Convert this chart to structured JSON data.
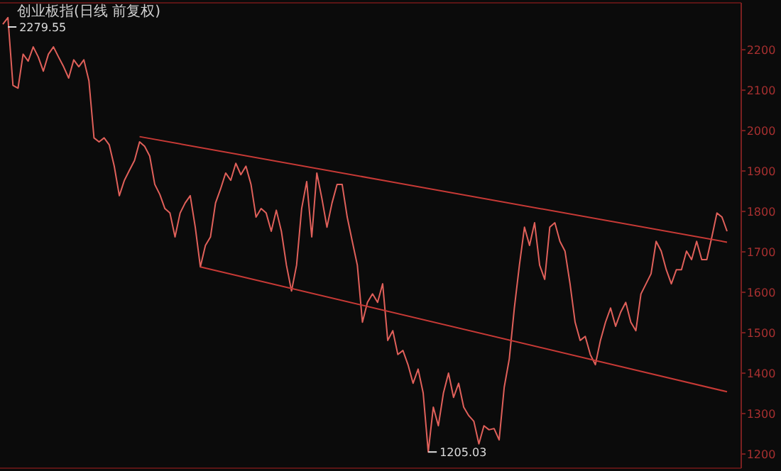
{
  "chart_data": {
    "type": "line",
    "title": "创业板指(日线 前复权)",
    "categories": [
      null,
      null,
      null,
      null,
      null,
      null,
      null,
      null,
      null,
      null,
      null,
      null,
      null,
      null,
      null,
      null,
      null,
      null,
      null,
      null,
      null,
      null,
      null,
      null,
      null,
      null,
      null,
      null,
      null,
      null,
      null,
      null,
      null,
      null,
      null,
      null,
      null,
      null,
      null,
      null,
      null,
      null,
      null,
      null,
      null,
      null,
      null,
      null,
      null,
      null,
      null,
      null,
      null,
      null,
      null,
      null,
      null,
      null,
      null,
      null,
      null,
      null,
      null,
      null,
      null,
      null,
      null,
      null,
      null,
      null,
      null,
      null,
      null,
      null,
      null,
      null,
      null,
      null,
      null,
      null,
      null,
      null,
      null,
      null,
      null,
      null,
      null,
      null,
      null,
      null,
      null,
      null,
      null,
      null,
      null,
      null,
      null,
      null,
      null,
      null,
      null,
      null,
      null,
      null,
      null,
      null,
      null,
      null,
      null,
      null,
      null,
      null,
      null,
      null,
      null,
      null,
      null,
      null,
      null,
      null,
      null,
      null,
      null,
      null,
      null,
      null,
      null,
      null,
      null,
      null,
      null,
      null,
      null,
      null,
      null,
      null,
      null,
      null,
      null,
      null,
      null,
      null,
      null,
      null
    ],
    "series": [
      {
        "color": "#e0605a",
        "values": [
          2263,
          2279.55,
          2112,
          2105,
          2189,
          2172,
          2207,
          2182,
          2147,
          2189,
          2207,
          2182,
          2158,
          2130,
          2175,
          2158,
          2175,
          2123,
          1982,
          1972,
          1982,
          1965,
          1912,
          1839,
          1877,
          1902,
          1926,
          1972,
          1961,
          1937,
          1867,
          1842,
          1807,
          1796,
          1737,
          1796,
          1821,
          1839,
          1761,
          1663,
          1716,
          1737,
          1821,
          1856,
          1895,
          1877,
          1919,
          1891,
          1912,
          1867,
          1786,
          1807,
          1796,
          1751,
          1803,
          1751,
          1667,
          1603,
          1667,
          1807,
          1874,
          1737,
          1895,
          1832,
          1761,
          1821,
          1867,
          1867,
          1786,
          1726,
          1667,
          1526,
          1575,
          1596,
          1575,
          1621,
          1481,
          1505,
          1446,
          1456,
          1421,
          1375,
          1410,
          1351,
          1205.03,
          1316,
          1270,
          1351,
          1400,
          1340,
          1375,
          1316,
          1295,
          1281,
          1225,
          1270,
          1260,
          1263,
          1235,
          1365,
          1435,
          1561,
          1667,
          1761,
          1716,
          1772,
          1667,
          1632,
          1761,
          1772,
          1726,
          1702,
          1621,
          1526,
          1481,
          1491,
          1446,
          1421,
          1481,
          1526,
          1561,
          1516,
          1551,
          1575,
          1526,
          1505,
          1596,
          1621,
          1646,
          1726,
          1702,
          1656,
          1621,
          1656,
          1656,
          1702,
          1681,
          1726,
          1681,
          1681,
          1737,
          1796,
          1786,
          1751
        ]
      },
      {
        "color": "#c83a36",
        "values": [
          null,
          null,
          null,
          null,
          null,
          null,
          null,
          null,
          null,
          null,
          null,
          null,
          null,
          null,
          null,
          null,
          null,
          null,
          null,
          null,
          null,
          null,
          null,
          null,
          null,
          null,
          null,
          1985,
          null,
          null,
          null,
          null,
          null,
          null,
          null,
          null,
          null,
          null,
          null,
          null,
          null,
          null,
          null,
          null,
          null,
          null,
          null,
          null,
          null,
          null,
          null,
          null,
          null,
          null,
          null,
          null,
          null,
          null,
          null,
          null,
          null,
          null,
          null,
          null,
          null,
          null,
          null,
          null,
          null,
          null,
          null,
          null,
          null,
          null,
          null,
          null,
          null,
          null,
          null,
          null,
          null,
          null,
          null,
          null,
          null,
          null,
          null,
          null,
          null,
          null,
          null,
          null,
          null,
          null,
          null,
          null,
          null,
          null,
          null,
          null,
          null,
          null,
          null,
          null,
          null,
          null,
          null,
          null,
          null,
          null,
          null,
          null,
          null,
          null,
          null,
          null,
          null,
          null,
          null,
          null,
          null,
          null,
          null,
          null,
          null,
          null,
          null,
          null,
          null,
          null,
          null,
          null,
          null,
          null,
          null,
          null,
          null,
          null,
          null,
          null,
          null,
          null,
          null,
          1724
        ]
      },
      {
        "color": "#c83a36",
        "values": [
          null,
          null,
          null,
          null,
          null,
          null,
          null,
          null,
          null,
          null,
          null,
          null,
          null,
          null,
          null,
          null,
          null,
          null,
          null,
          null,
          null,
          null,
          null,
          null,
          null,
          null,
          null,
          null,
          null,
          null,
          null,
          null,
          null,
          null,
          null,
          null,
          null,
          null,
          null,
          1663,
          null,
          null,
          null,
          null,
          null,
          null,
          null,
          null,
          null,
          null,
          null,
          null,
          null,
          null,
          null,
          null,
          null,
          null,
          null,
          null,
          null,
          null,
          null,
          null,
          null,
          null,
          null,
          null,
          null,
          null,
          null,
          null,
          null,
          null,
          null,
          null,
          null,
          null,
          null,
          null,
          null,
          null,
          null,
          null,
          null,
          null,
          null,
          null,
          null,
          null,
          null,
          null,
          null,
          null,
          null,
          null,
          null,
          null,
          null,
          null,
          null,
          null,
          null,
          null,
          null,
          null,
          null,
          null,
          null,
          null,
          null,
          null,
          null,
          null,
          null,
          null,
          null,
          null,
          null,
          null,
          null,
          null,
          null,
          null,
          null,
          null,
          null,
          null,
          null,
          null,
          null,
          null,
          null,
          null,
          null,
          null,
          null,
          null,
          null,
          null,
          null,
          null,
          null,
          1354
        ]
      }
    ],
    "annotations": [
      "2279.55",
      "1205.03"
    ],
    "ylim": [
      1165,
      2316
    ],
    "yticks": [
      1200,
      1300,
      1400,
      1500,
      1600,
      1700,
      1800,
      1900,
      2000,
      2100,
      2200
    ],
    "tick_labels": "y"
  }
}
